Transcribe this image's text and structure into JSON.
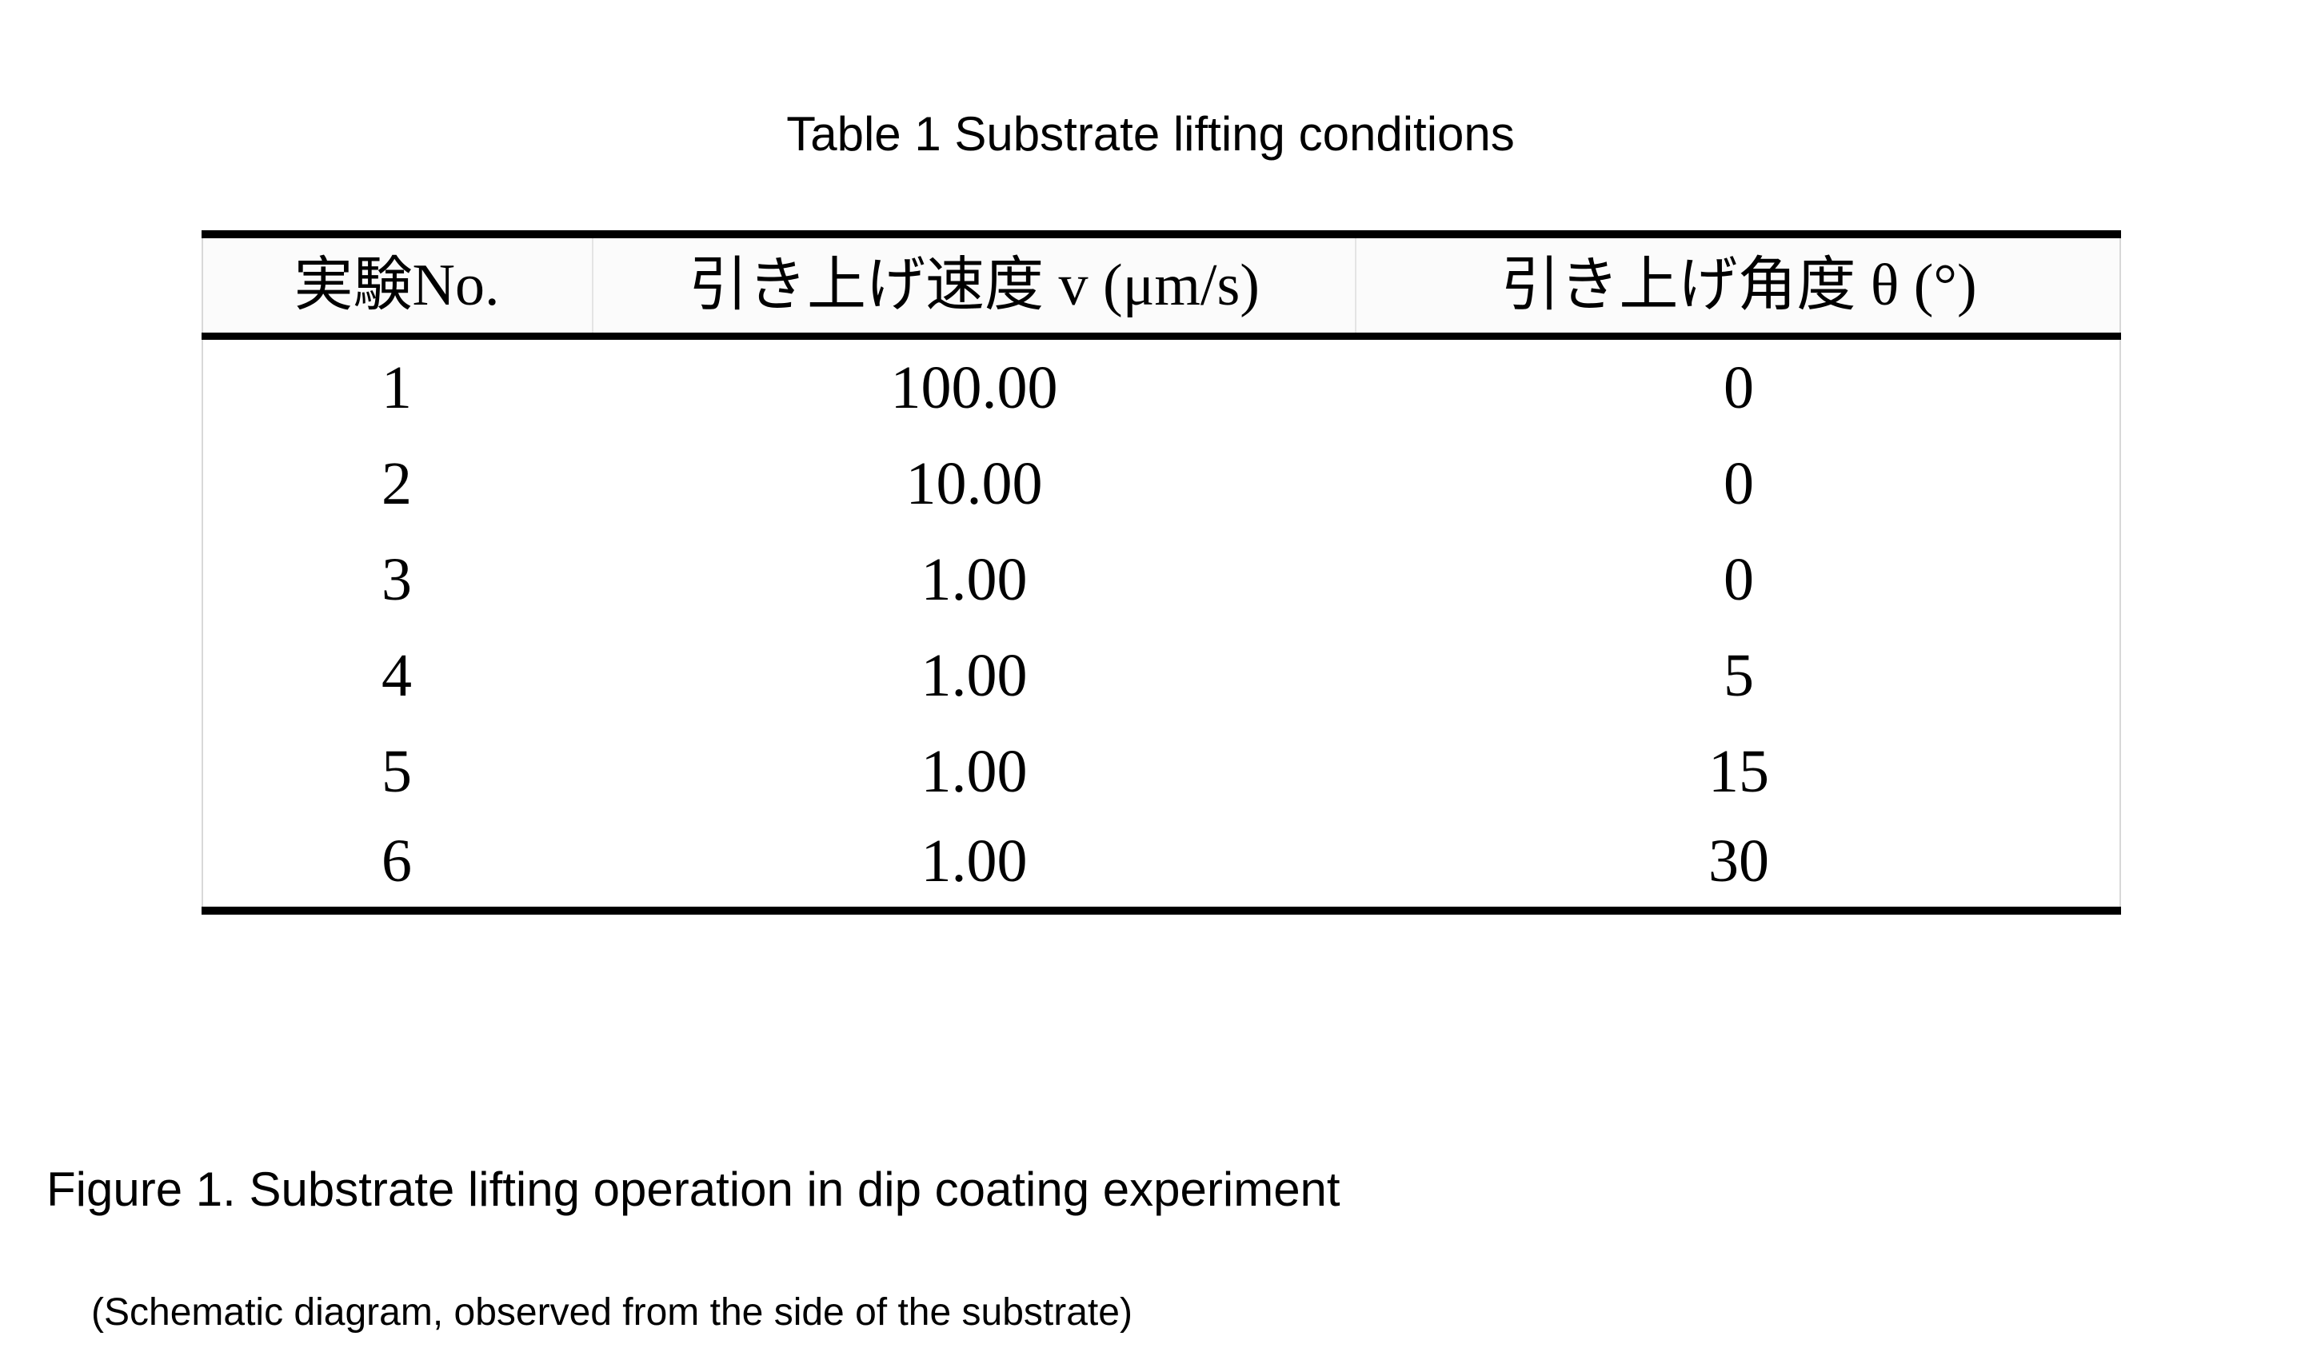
{
  "table": {
    "caption": "Table 1 Substrate lifting conditions",
    "headers": [
      "実験No.",
      "引き上げ速度 v (μm/s)",
      "引き上げ角度 θ (°)"
    ],
    "rows": [
      [
        "1",
        "100.00",
        "0"
      ],
      [
        "2",
        "10.00",
        "0"
      ],
      [
        "3",
        "1.00",
        "0"
      ],
      [
        "4",
        "1.00",
        "5"
      ],
      [
        "5",
        "1.00",
        "15"
      ],
      [
        "6",
        "1.00",
        "30"
      ]
    ]
  },
  "figure": {
    "caption": "Figure 1. Substrate lifting operation in dip coating experiment",
    "note": "(Schematic diagram, observed from the side of the substrate)"
  }
}
